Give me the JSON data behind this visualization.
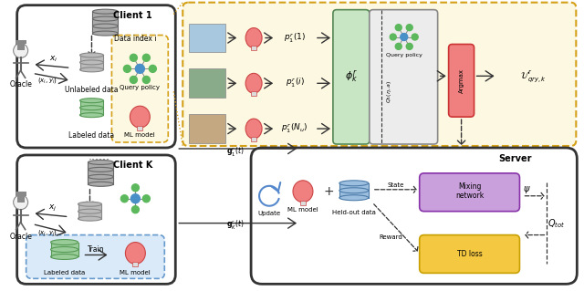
{
  "fig_width": 6.4,
  "fig_height": 3.19,
  "bg_color": "#ffffff",
  "yellow_bg": "#fdf8e1",
  "green_panel_color": "#c8e6c4",
  "gray_panel_color": "#ececec",
  "purple_box_color": "#c9a0dc",
  "orange_box_color": "#f5c842",
  "red_box_color": "#f08080",
  "blue_box_color": "#c5ddf5",
  "light_blue_fill": "#daeaf8",
  "client1_label": "Client 1",
  "clientK_label": "Client K",
  "server_label": "Server",
  "oracle_label": "Oracle",
  "query_policy_label": "Query policy",
  "ml_model_label": "ML model",
  "unlabeled_label": "Unlabeled data",
  "labeled_label": "Labeled data",
  "data_index_label": "Data index i",
  "mixing_label": "Mixing\nnetwork",
  "td_loss_label": "TD loss",
  "train_label": "Train",
  "update_label": "Update",
  "held_out_label": "Held-out data",
  "argmax_label": "Argmax",
  "state_label": "State",
  "reward_label": "Reward",
  "psi_label": "$\\psi$",
  "qtot_label": "$Q_{tot}$"
}
